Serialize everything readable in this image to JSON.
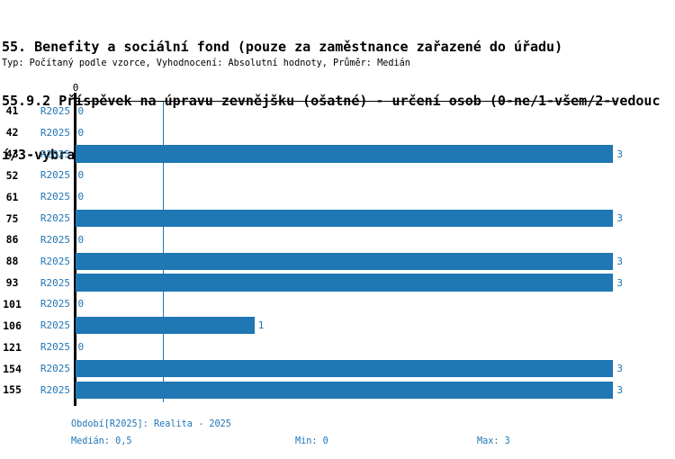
{
  "header": {
    "title_lines": [
      "55. Benefity a sociální fond (pouze za zaměstnance zařazené do úřadu)",
      "55.9.2 Příspěvek na úpravu zevnějšku (ošatné) - určení osob (0-ne/1-všem/2-vedouc",
      "í/3-vybrané pozice)"
    ],
    "meta": "Typ: Počítaný podle vzorce, Vyhodnocení: Absolutní hodnoty, Průměr: Medián"
  },
  "chart_data": {
    "type": "bar",
    "orientation": "horizontal",
    "title": "55.9.2 Příspěvek na úpravu zevnějšku (ošatné) - určení osob (0-ne/1-všem/2-vedoucí/3-vybrané pozice)",
    "categories": [
      "41",
      "42",
      "43",
      "52",
      "61",
      "75",
      "86",
      "88",
      "93",
      "101",
      "106",
      "121",
      "154",
      "155"
    ],
    "series": [
      {
        "name": "R2025",
        "values": [
          0,
          0,
          3,
          0,
          0,
          3,
          0,
          3,
          3,
          0,
          1,
          0,
          3,
          3
        ]
      }
    ],
    "xlim": [
      0,
      3
    ],
    "x_tick_labels": [
      "0"
    ],
    "median_line_value": 0.5,
    "grid": "median-only",
    "legend_position": "none",
    "bar_color": "#1f77b4",
    "label_color": "#2176b5",
    "stats": {
      "median": "0,5",
      "min": "0",
      "max": "3"
    }
  },
  "footer": {
    "period": "Období[R2025]: Realita - 2025",
    "median": "Medián: 0,5",
    "min": "Min: 0",
    "max": "Max: 3"
  }
}
